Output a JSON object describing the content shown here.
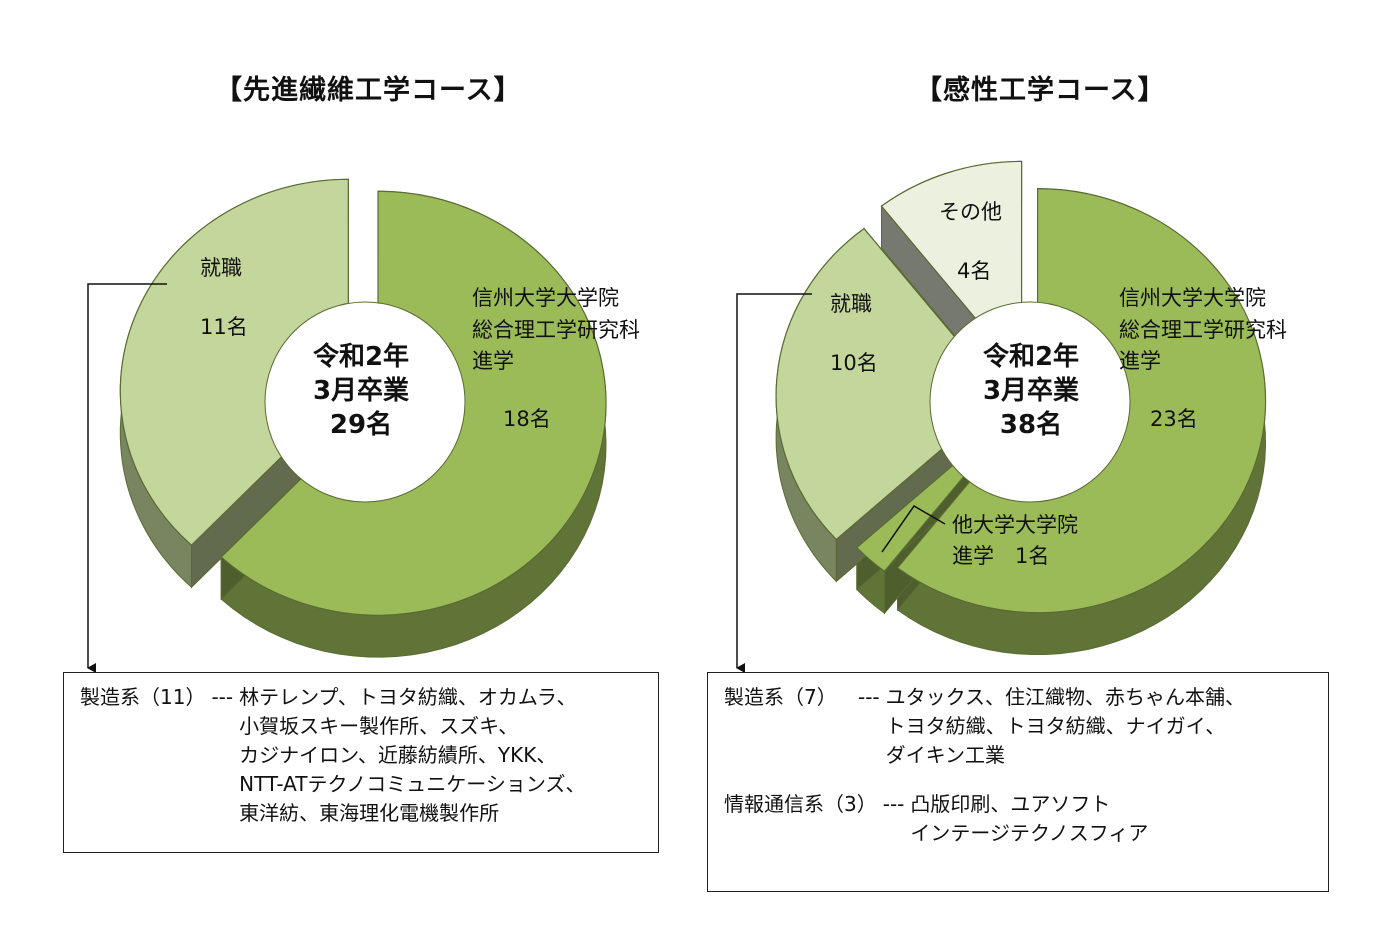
{
  "chart_data": [
    {
      "type": "pie",
      "title": "【先進繊維工学コース】",
      "center_text": [
        "令和2年",
        "3月卒業",
        "29名"
      ],
      "slices": [
        {
          "label": [
            "信州大学大学院",
            "総合理工学研究科",
            " 進学"
          ],
          "value_label": "18名",
          "value": 18,
          "color": "#9bbb59"
        },
        {
          "label": [
            "就職"
          ],
          "value_label": "11名",
          "value": 11,
          "color": "#c3d69b"
        }
      ],
      "callout": {
        "rows": [
          {
            "category": "製造系（11）",
            "dashes": "---",
            "companies": [
              "林テレンプ、トヨタ紡織、オカムラ、",
              "小賀坂スキー製作所、スズキ、",
              "カジナイロン、近藤紡績所、YKK、",
              "NTT-ATテクノコミュニケーションズ、",
              "東洋紡、東海理化電機製作所"
            ]
          }
        ]
      }
    },
    {
      "type": "pie",
      "title": "【感性工学コース】",
      "center_text": [
        "令和2年",
        "3月卒業",
        "38名"
      ],
      "slices": [
        {
          "label": [
            "信州大学大学院",
            "総合理工学研究科",
            " 進学"
          ],
          "value_label": "23名",
          "value": 23,
          "color": "#9bbb59"
        },
        {
          "label": [
            "他大学大学院",
            "進学　1名"
          ],
          "value_label": "",
          "value": 1,
          "color": "#9bbb59"
        },
        {
          "label": [
            "就職"
          ],
          "value_label": "10名",
          "value": 10,
          "color": "#c3d69b"
        },
        {
          "label": [
            "その他"
          ],
          "value_label": "4名",
          "value": 4,
          "color": "#ebf1de"
        }
      ],
      "callout": {
        "rows": [
          {
            "category": "製造系（7）",
            "dashes": "---",
            "companies": [
              "ユタックス、住江織物、赤ちゃん本舗、",
              "トヨタ紡織、トヨタ紡織、ナイガイ、",
              "ダイキン工業"
            ]
          },
          {
            "category": "情報通信系（3）",
            "dashes": "---",
            "companies": [
              "凸版印刷、ユアソフト",
              "インテージテクノスフィア"
            ]
          }
        ]
      }
    }
  ],
  "colors": {
    "dark_green": "#9bbb59",
    "light_green": "#c3d69b",
    "pale": "#ebf1de",
    "outline": "#5a6b33"
  }
}
